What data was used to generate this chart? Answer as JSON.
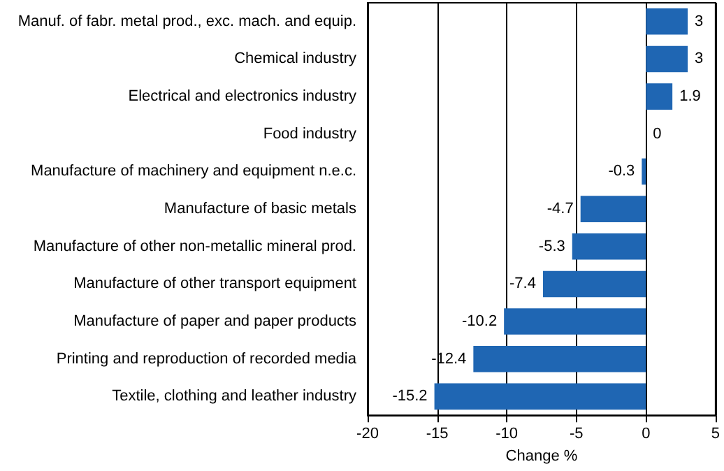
{
  "chart_data": {
    "type": "bar",
    "orientation": "horizontal",
    "xlabel": "Change %",
    "categories": [
      "Manuf. of fabr. metal prod., exc. mach. and equip.",
      "Chemical industry",
      "Electrical and electronics industry",
      "Food industry",
      "Manufacture of machinery and equipment n.e.c.",
      "Manufacture of basic metals",
      "Manufacture of other non-metallic mineral prod.",
      "Manufacture of other transport equipment",
      "Manufacture of paper and paper products",
      "Printing and reproduction of recorded media",
      "Textile, clothing and leather industry"
    ],
    "values": [
      3,
      3,
      1.9,
      0,
      -0.3,
      -4.7,
      -5.3,
      -7.4,
      -10.2,
      -12.4,
      -15.2
    ],
    "color": "#1f66b3",
    "xlim": [
      -20,
      5
    ],
    "xticks": [
      -20,
      -15,
      -10,
      -5,
      0,
      5
    ],
    "grid": "x",
    "data_labels": true
  }
}
